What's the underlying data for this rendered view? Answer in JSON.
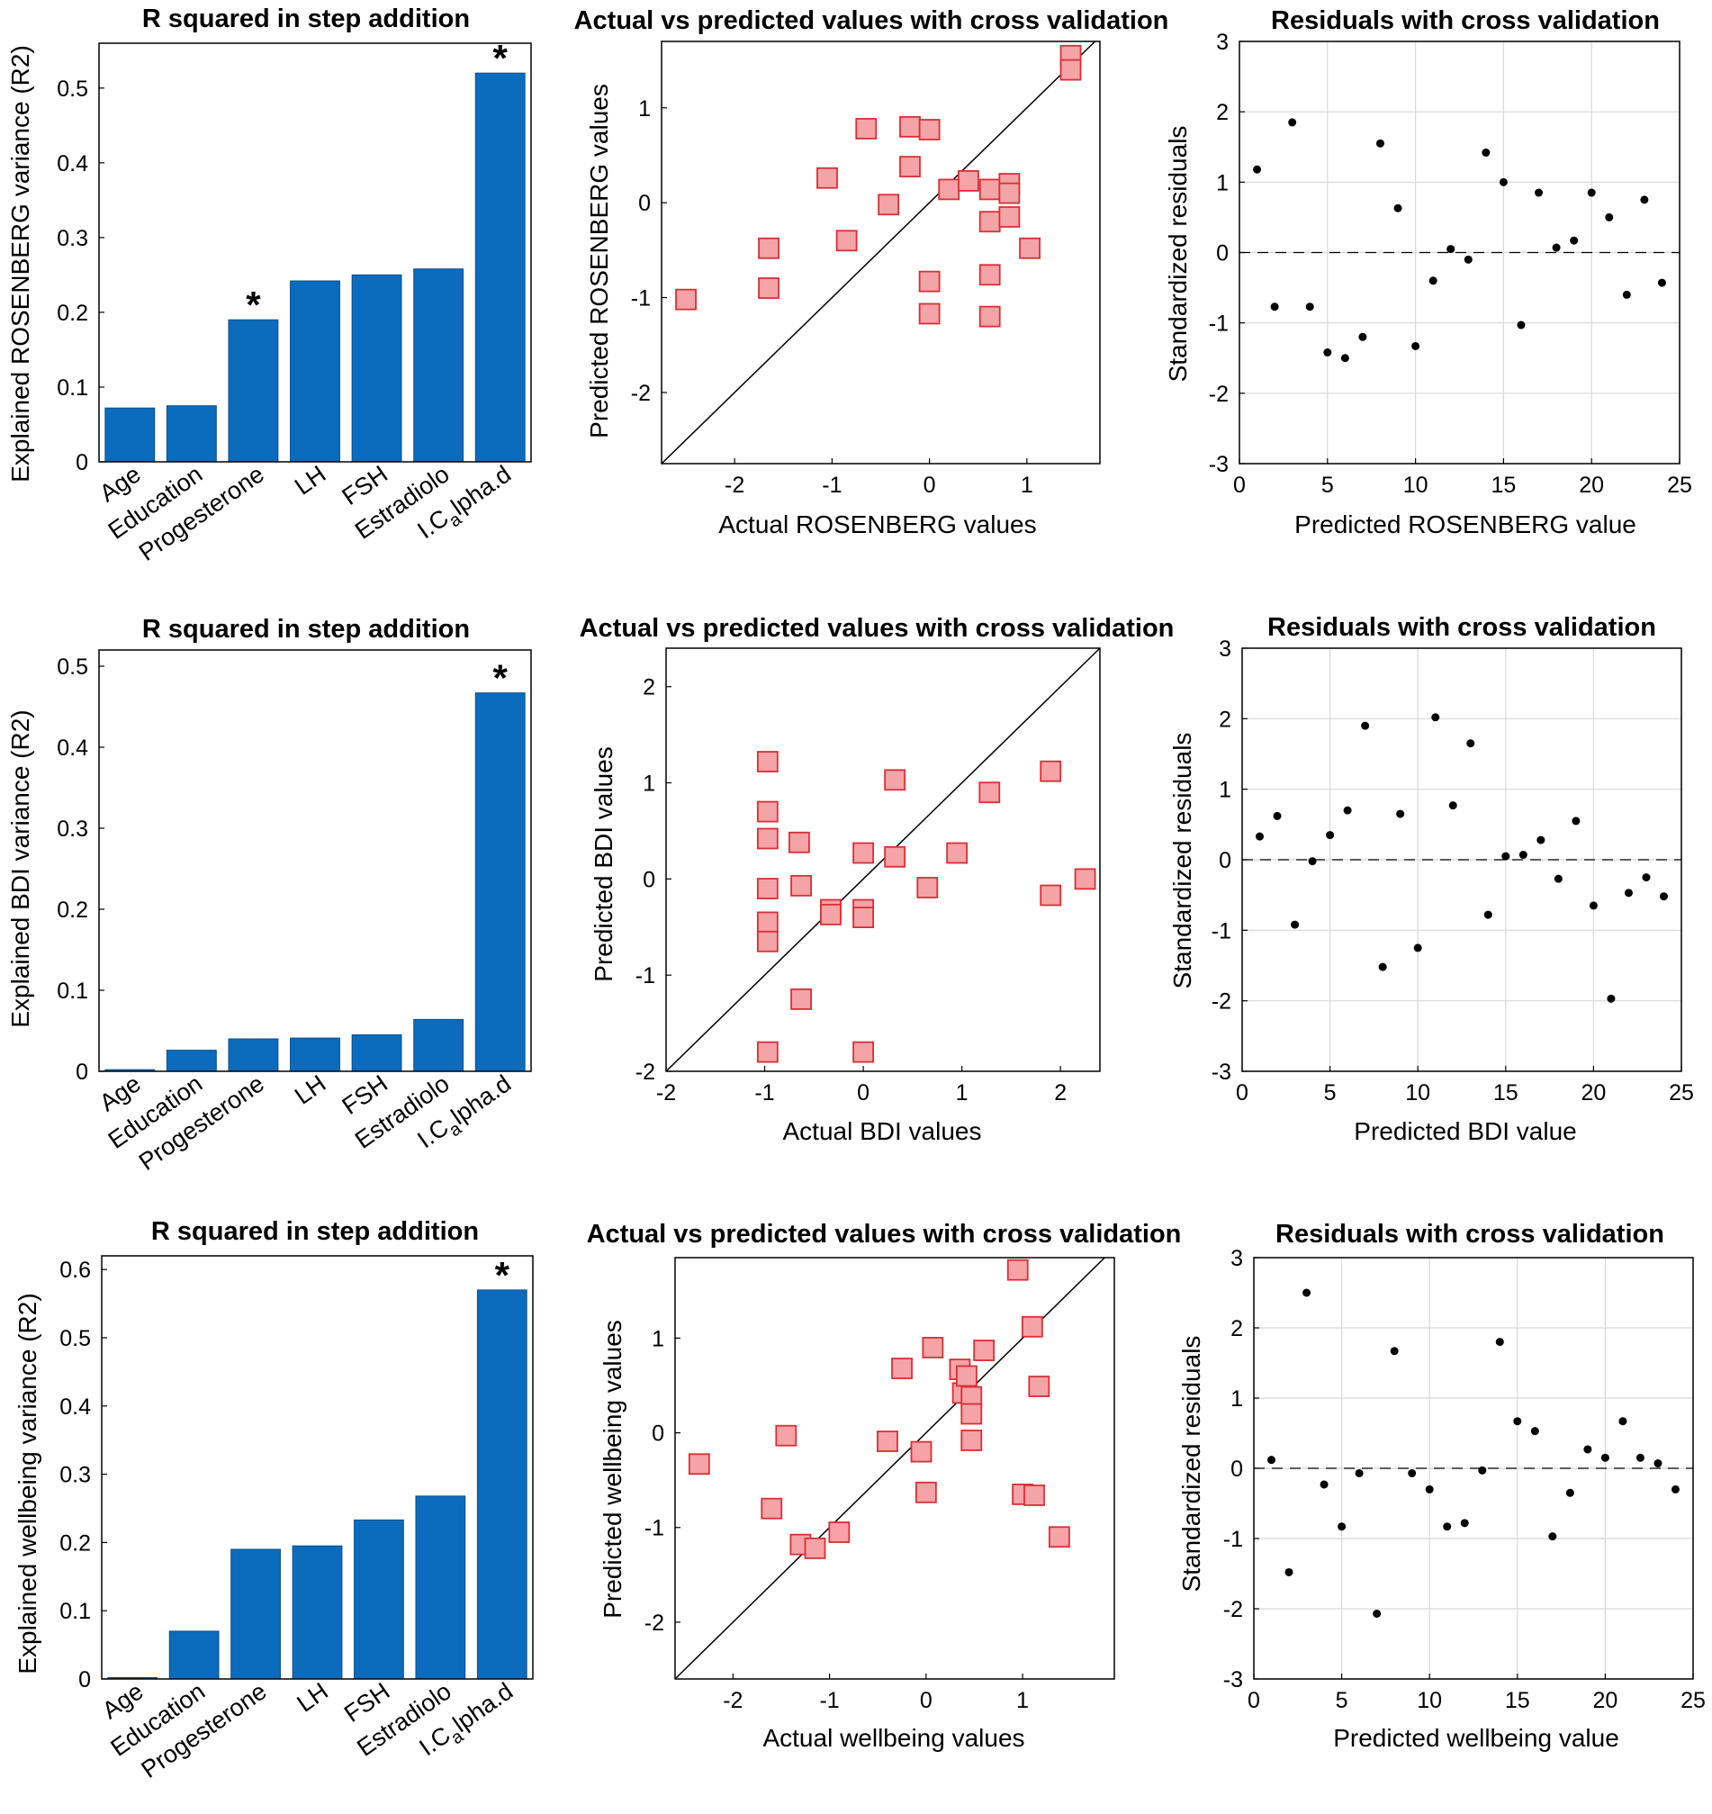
{
  "colors": {
    "bar": "#0b6cbd",
    "bar_edge": "#084e8a",
    "marker_fill": "#f4a3a6",
    "marker_edge": "#d92f36",
    "dot": "#000000",
    "grid": "#d8d8d8"
  },
  "chart_data": [
    {
      "id": "r2-rosenberg",
      "type": "bar",
      "title": "R squared in step addition",
      "ylabel": "Explained ROSENBERG variance (R2)",
      "categories": [
        "Age",
        "Education",
        "Progesterone",
        "LH",
        "FSH",
        "Estradiolo",
        "I.C alpha.d"
      ],
      "values": [
        0.072,
        0.075,
        0.19,
        0.242,
        0.25,
        0.258,
        0.52
      ],
      "significant": [
        false,
        false,
        true,
        false,
        false,
        false,
        true
      ],
      "star_label": "*",
      "ylim": [
        0,
        0.56
      ],
      "yticks": [
        0,
        0.1,
        0.2,
        0.3,
        0.4,
        0.5
      ],
      "ytick_labels": [
        "0",
        "0.1",
        "0.2",
        "0.3",
        "0.4",
        "0.5"
      ]
    },
    {
      "id": "avp-rosenberg",
      "type": "scatter",
      "title": "Actual vs predicted values with cross validation",
      "xlabel": "Actual ROSENBERG values",
      "ylabel": "Predicted ROSENBERG values",
      "xlim": [
        -2.75,
        1.75
      ],
      "ylim": [
        -2.75,
        1.7
      ],
      "xticks": [
        -2,
        -1,
        0,
        1
      ],
      "xtick_labels": [
        "-2",
        "-1",
        "0",
        "1"
      ],
      "yticks": [
        -2,
        -1,
        0,
        1
      ],
      "ytick_labels": [
        "-2",
        "-1",
        "0",
        "1"
      ],
      "identity_line": true,
      "points": [
        [
          -2.5,
          -1.02
        ],
        [
          -1.65,
          -0.48
        ],
        [
          -1.65,
          -0.9
        ],
        [
          -1.05,
          0.26
        ],
        [
          -0.85,
          -0.4
        ],
        [
          -0.65,
          0.78
        ],
        [
          -0.42,
          -0.02
        ],
        [
          -0.2,
          0.8
        ],
        [
          -0.2,
          0.38
        ],
        [
          0,
          0.77
        ],
        [
          0,
          -0.83
        ],
        [
          0,
          -1.17
        ],
        [
          0.2,
          0.14
        ],
        [
          0.4,
          0.23
        ],
        [
          0.62,
          0.14
        ],
        [
          0.62,
          -0.2
        ],
        [
          0.62,
          -0.76
        ],
        [
          0.62,
          -1.2
        ],
        [
          0.82,
          0.2
        ],
        [
          0.82,
          0.1
        ],
        [
          0.82,
          -0.15
        ],
        [
          1.03,
          -0.48
        ],
        [
          1.45,
          1.55
        ],
        [
          1.45,
          1.4
        ]
      ]
    },
    {
      "id": "res-rosenberg",
      "type": "scatter",
      "title": "Residuals with cross validation",
      "xlabel": "Predicted ROSENBERG value",
      "ylabel": "Standardized residuals",
      "xlim": [
        0,
        25
      ],
      "ylim": [
        -3,
        3
      ],
      "xticks": [
        0,
        5,
        10,
        15,
        20,
        25
      ],
      "xtick_labels": [
        "0",
        "5",
        "10",
        "15",
        "20",
        "25"
      ],
      "yticks": [
        -3,
        -2,
        -1,
        0,
        1,
        2,
        3
      ],
      "ytick_labels": [
        "-3",
        "-2",
        "-1",
        "0",
        "1",
        "2",
        "3"
      ],
      "zero_line": true,
      "grid": true,
      "points": [
        [
          1,
          1.18
        ],
        [
          2,
          -0.77
        ],
        [
          3,
          1.85
        ],
        [
          4,
          -0.77
        ],
        [
          5,
          -1.42
        ],
        [
          6,
          -1.5
        ],
        [
          7,
          -1.2
        ],
        [
          8,
          1.55
        ],
        [
          9,
          0.63
        ],
        [
          10,
          -1.33
        ],
        [
          11,
          -0.4
        ],
        [
          12,
          0.05
        ],
        [
          13,
          -0.1
        ],
        [
          14,
          1.42
        ],
        [
          15,
          1.0
        ],
        [
          16,
          -1.03
        ],
        [
          17,
          0.85
        ],
        [
          18,
          0.07
        ],
        [
          19,
          0.17
        ],
        [
          20,
          0.85
        ],
        [
          21,
          0.5
        ],
        [
          22,
          -0.6
        ],
        [
          23,
          0.75
        ],
        [
          24,
          -0.43
        ]
      ]
    },
    {
      "id": "r2-bdi",
      "type": "bar",
      "title": "R squared in step addition",
      "ylabel": "Explained BDI variance (R2)",
      "categories": [
        "Age",
        "Education",
        "Progesterone",
        "LH",
        "FSH",
        "Estradiolo",
        "I.C alpha.d"
      ],
      "values": [
        0.002,
        0.026,
        0.04,
        0.041,
        0.045,
        0.064,
        0.467
      ],
      "significant": [
        false,
        false,
        false,
        false,
        false,
        false,
        true
      ],
      "star_label": "*",
      "ylim": [
        0,
        0.52
      ],
      "yticks": [
        0,
        0.1,
        0.2,
        0.3,
        0.4,
        0.5
      ],
      "ytick_labels": [
        "0",
        "0.1",
        "0.2",
        "0.3",
        "0.4",
        "0.5"
      ]
    },
    {
      "id": "avp-bdi",
      "type": "scatter",
      "title": "Actual vs predicted values with cross validation",
      "xlabel": "Actual BDI values",
      "ylabel": "Predicted BDI values",
      "xlim": [
        -2,
        2.4
      ],
      "ylim": [
        -2,
        2.4
      ],
      "xticks": [
        -2,
        -1,
        0,
        1,
        2
      ],
      "xtick_labels": [
        "-2",
        "-1",
        "0",
        "1",
        "2"
      ],
      "yticks": [
        -2,
        -1,
        0,
        1,
        2
      ],
      "ytick_labels": [
        "-2",
        "-1",
        "0",
        "1",
        "2"
      ],
      "identity_line": true,
      "points": [
        [
          -0.97,
          1.22
        ],
        [
          -0.97,
          0.7
        ],
        [
          -0.97,
          0.42
        ],
        [
          -0.97,
          -0.1
        ],
        [
          -0.97,
          -0.45
        ],
        [
          -0.97,
          -0.65
        ],
        [
          -0.97,
          -1.8
        ],
        [
          -0.65,
          0.38
        ],
        [
          -0.63,
          -0.07
        ],
        [
          -0.63,
          -1.25
        ],
        [
          -0.33,
          -0.32
        ],
        [
          -0.33,
          -0.37
        ],
        [
          0,
          0.27
        ],
        [
          0,
          -0.32
        ],
        [
          0,
          -0.4
        ],
        [
          0,
          -1.8
        ],
        [
          0.32,
          1.03
        ],
        [
          0.32,
          0.23
        ],
        [
          0.65,
          -0.09
        ],
        [
          0.95,
          0.27
        ],
        [
          1.28,
          0.9
        ],
        [
          1.9,
          1.12
        ],
        [
          1.9,
          -0.17
        ],
        [
          2.25,
          0
        ]
      ]
    },
    {
      "id": "res-bdi",
      "type": "scatter",
      "title": "Residuals with cross validation",
      "xlabel": "Predicted BDI value",
      "ylabel": "Standardized residuals",
      "xlim": [
        0,
        25
      ],
      "ylim": [
        -3,
        3
      ],
      "xticks": [
        0,
        5,
        10,
        15,
        20,
        25
      ],
      "xtick_labels": [
        "0",
        "5",
        "10",
        "15",
        "20",
        "25"
      ],
      "yticks": [
        -3,
        -2,
        -1,
        0,
        1,
        2,
        3
      ],
      "ytick_labels": [
        "-3",
        "-2",
        "-1",
        "0",
        "1",
        "2",
        "3"
      ],
      "zero_line": true,
      "grid": true,
      "points": [
        [
          1,
          0.33
        ],
        [
          2,
          0.62
        ],
        [
          3,
          -0.92
        ],
        [
          4,
          -0.02
        ],
        [
          5,
          0.35
        ],
        [
          6,
          0.7
        ],
        [
          7,
          1.9
        ],
        [
          8,
          -1.52
        ],
        [
          9,
          0.65
        ],
        [
          10,
          -1.25
        ],
        [
          11,
          2.02
        ],
        [
          12,
          0.77
        ],
        [
          13,
          1.65
        ],
        [
          14,
          -0.78
        ],
        [
          15,
          0.05
        ],
        [
          16,
          0.07
        ],
        [
          17,
          0.28
        ],
        [
          18,
          -0.27
        ],
        [
          19,
          0.55
        ],
        [
          20,
          -0.65
        ],
        [
          21,
          -1.97
        ],
        [
          22,
          -0.47
        ],
        [
          23,
          -0.25
        ],
        [
          24,
          -0.52
        ]
      ]
    },
    {
      "id": "r2-wellbeing",
      "type": "bar",
      "title": "R squared in step addition",
      "ylabel": "Explained wellbeing variance (R2)",
      "categories": [
        "Age",
        "Education",
        "Progesterone",
        "LH",
        "FSH",
        "Estradiolo",
        "I.C alpha.d"
      ],
      "values": [
        0.002,
        0.07,
        0.19,
        0.195,
        0.233,
        0.268,
        0.57
      ],
      "significant": [
        false,
        false,
        false,
        false,
        false,
        false,
        true
      ],
      "star_label": "*",
      "ylim": [
        0,
        0.62
      ],
      "yticks": [
        0,
        0.1,
        0.2,
        0.3,
        0.4,
        0.5,
        0.6
      ],
      "ytick_labels": [
        "0",
        "0.1",
        "0.2",
        "0.3",
        "0.4",
        "0.5",
        "0.6"
      ]
    },
    {
      "id": "avp-wellbeing",
      "type": "scatter",
      "title": "Actual vs predicted values with cross validation",
      "xlabel": "Actual wellbeing values",
      "ylabel": "Predicted wellbeing values",
      "xlim": [
        -2.6,
        1.95
      ],
      "ylim": [
        -2.6,
        1.85
      ],
      "xticks": [
        -2,
        -1,
        0,
        1
      ],
      "xtick_labels": [
        "-2",
        "-1",
        "0",
        "1"
      ],
      "yticks": [
        -2,
        -1,
        0,
        1
      ],
      "ytick_labels": [
        "-2",
        "-1",
        "0",
        "1"
      ],
      "identity_line": true,
      "points": [
        [
          -2.35,
          -0.33
        ],
        [
          -1.6,
          -0.8
        ],
        [
          -1.45,
          -0.03
        ],
        [
          -1.3,
          -1.18
        ],
        [
          -1.15,
          -1.22
        ],
        [
          -0.9,
          -1.05
        ],
        [
          -0.4,
          -0.09
        ],
        [
          -0.25,
          0.68
        ],
        [
          -0.05,
          -0.2
        ],
        [
          0,
          -0.63
        ],
        [
          0.07,
          0.9
        ],
        [
          0.35,
          0.67
        ],
        [
          0.38,
          0.42
        ],
        [
          0.42,
          0.6
        ],
        [
          0.47,
          0.38
        ],
        [
          0.47,
          0.2
        ],
        [
          0.47,
          -0.08
        ],
        [
          0.6,
          0.87
        ],
        [
          0.95,
          1.72
        ],
        [
          1.0,
          -0.65
        ],
        [
          1.1,
          1.12
        ],
        [
          1.12,
          -0.66
        ],
        [
          1.17,
          0.49
        ],
        [
          1.38,
          -1.1
        ]
      ]
    },
    {
      "id": "res-wellbeing",
      "type": "scatter",
      "title": "Residuals with cross validation",
      "xlabel": "Predicted wellbeing value",
      "ylabel": "Standardized residuals",
      "xlim": [
        0,
        25
      ],
      "ylim": [
        -3,
        3
      ],
      "xticks": [
        0,
        5,
        10,
        15,
        20,
        25
      ],
      "xtick_labels": [
        "0",
        "5",
        "10",
        "15",
        "20",
        "25"
      ],
      "yticks": [
        -3,
        -2,
        -1,
        0,
        1,
        2,
        3
      ],
      "ytick_labels": [
        "-3",
        "-2",
        "-1",
        "0",
        "1",
        "2",
        "3"
      ],
      "zero_line": true,
      "grid": true,
      "points": [
        [
          1,
          0.12
        ],
        [
          2,
          -1.48
        ],
        [
          3,
          2.5
        ],
        [
          4,
          -0.23
        ],
        [
          5,
          -0.83
        ],
        [
          6,
          -0.07
        ],
        [
          7,
          -2.07
        ],
        [
          8,
          1.67
        ],
        [
          9,
          -0.07
        ],
        [
          10,
          -0.3
        ],
        [
          11,
          -0.83
        ],
        [
          12,
          -0.78
        ],
        [
          13,
          -0.03
        ],
        [
          14,
          1.8
        ],
        [
          15,
          0.67
        ],
        [
          16,
          0.53
        ],
        [
          17,
          -0.97
        ],
        [
          18,
          -0.35
        ],
        [
          19,
          0.27
        ],
        [
          20,
          0.15
        ],
        [
          21,
          0.67
        ],
        [
          22,
          0.15
        ],
        [
          23,
          0.07
        ],
        [
          24,
          -0.3
        ]
      ]
    }
  ]
}
